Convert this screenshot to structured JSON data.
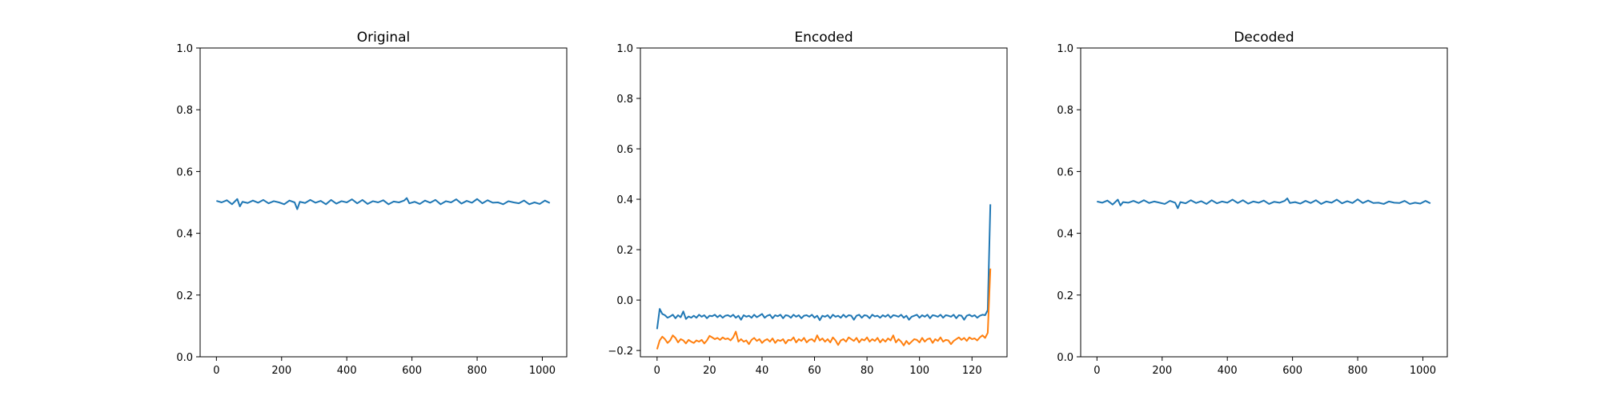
{
  "chart_data": [
    {
      "type": "line",
      "title": "Original",
      "xlim": [
        -50,
        1075
      ],
      "ylim": [
        0.0,
        1.0
      ],
      "xticks": [
        0,
        200,
        400,
        600,
        800,
        1000
      ],
      "xtick_labels": [
        "0",
        "200",
        "400",
        "600",
        "800",
        "1000"
      ],
      "yticks": [
        0.0,
        0.2,
        0.4,
        0.6,
        0.8,
        1.0
      ],
      "ytick_labels": [
        "0.0",
        "0.2",
        "0.4",
        "0.6",
        "0.8",
        "1.0"
      ],
      "series": [
        {
          "color": "#1f77b4",
          "x": [
            0,
            16,
            32,
            48,
            64,
            72,
            80,
            96,
            112,
            128,
            144,
            160,
            176,
            192,
            208,
            224,
            240,
            248,
            256,
            272,
            288,
            304,
            320,
            336,
            352,
            368,
            384,
            400,
            416,
            432,
            448,
            464,
            480,
            496,
            512,
            528,
            544,
            560,
            576,
            584,
            592,
            608,
            624,
            640,
            656,
            672,
            688,
            704,
            720,
            736,
            752,
            768,
            784,
            800,
            816,
            832,
            848,
            864,
            880,
            896,
            912,
            928,
            944,
            960,
            976,
            992,
            1008,
            1023
          ],
          "y": [
            0.505,
            0.5,
            0.507,
            0.494,
            0.511,
            0.487,
            0.502,
            0.498,
            0.506,
            0.499,
            0.508,
            0.497,
            0.504,
            0.5,
            0.494,
            0.506,
            0.5,
            0.478,
            0.502,
            0.498,
            0.508,
            0.499,
            0.505,
            0.494,
            0.508,
            0.496,
            0.504,
            0.5,
            0.51,
            0.497,
            0.508,
            0.495,
            0.504,
            0.5,
            0.507,
            0.494,
            0.503,
            0.5,
            0.506,
            0.514,
            0.497,
            0.502,
            0.495,
            0.506,
            0.499,
            0.508,
            0.494,
            0.504,
            0.5,
            0.51,
            0.496,
            0.505,
            0.499,
            0.511,
            0.497,
            0.507,
            0.499,
            0.5,
            0.494,
            0.504,
            0.5,
            0.497,
            0.506,
            0.494,
            0.5,
            0.495,
            0.506,
            0.498
          ]
        }
      ]
    },
    {
      "type": "line",
      "title": "Encoded",
      "xlim": [
        -6.35,
        133.35
      ],
      "ylim": [
        -0.225,
        1.0
      ],
      "xticks": [
        0,
        20,
        40,
        60,
        80,
        100,
        120
      ],
      "xtick_labels": [
        "0",
        "20",
        "40",
        "60",
        "80",
        "100",
        "120"
      ],
      "yticks": [
        -0.2,
        0.0,
        0.2,
        0.4,
        0.6,
        0.8,
        1.0
      ],
      "ytick_labels": [
        "−0.2",
        "0.0",
        "0.2",
        "0.4",
        "0.6",
        "0.8",
        "1.0"
      ],
      "series": [
        {
          "color": "#1f77b4",
          "x": [
            0,
            1,
            2,
            3,
            4,
            5,
            6,
            7,
            8,
            9,
            10,
            11,
            12,
            13,
            14,
            15,
            16,
            17,
            18,
            19,
            20,
            21,
            22,
            23,
            24,
            25,
            26,
            27,
            28,
            29,
            30,
            31,
            32,
            33,
            34,
            35,
            36,
            37,
            38,
            39,
            40,
            41,
            42,
            43,
            44,
            45,
            46,
            47,
            48,
            49,
            50,
            51,
            52,
            53,
            54,
            55,
            56,
            57,
            58,
            59,
            60,
            61,
            62,
            63,
            64,
            65,
            66,
            67,
            68,
            69,
            70,
            71,
            72,
            73,
            74,
            75,
            76,
            77,
            78,
            79,
            80,
            81,
            82,
            83,
            84,
            85,
            86,
            87,
            88,
            89,
            90,
            91,
            92,
            93,
            94,
            95,
            96,
            97,
            98,
            99,
            100,
            101,
            102,
            103,
            104,
            105,
            106,
            107,
            108,
            109,
            110,
            111,
            112,
            113,
            114,
            115,
            116,
            117,
            118,
            119,
            120,
            121,
            122,
            123,
            124,
            125,
            126,
            127
          ],
          "y": [
            -0.115,
            -0.035,
            -0.055,
            -0.06,
            -0.07,
            -0.065,
            -0.058,
            -0.072,
            -0.06,
            -0.068,
            -0.045,
            -0.075,
            -0.065,
            -0.07,
            -0.062,
            -0.07,
            -0.058,
            -0.066,
            -0.06,
            -0.072,
            -0.062,
            -0.064,
            -0.058,
            -0.068,
            -0.06,
            -0.07,
            -0.062,
            -0.06,
            -0.066,
            -0.058,
            -0.07,
            -0.062,
            -0.078,
            -0.06,
            -0.066,
            -0.062,
            -0.07,
            -0.058,
            -0.068,
            -0.062,
            -0.055,
            -0.07,
            -0.062,
            -0.058,
            -0.072,
            -0.06,
            -0.064,
            -0.058,
            -0.072,
            -0.06,
            -0.062,
            -0.07,
            -0.058,
            -0.066,
            -0.06,
            -0.072,
            -0.062,
            -0.06,
            -0.066,
            -0.058,
            -0.07,
            -0.062,
            -0.08,
            -0.062,
            -0.066,
            -0.06,
            -0.072,
            -0.058,
            -0.066,
            -0.062,
            -0.07,
            -0.058,
            -0.068,
            -0.06,
            -0.062,
            -0.078,
            -0.062,
            -0.058,
            -0.07,
            -0.06,
            -0.062,
            -0.072,
            -0.058,
            -0.065,
            -0.062,
            -0.07,
            -0.06,
            -0.066,
            -0.058,
            -0.07,
            -0.06,
            -0.062,
            -0.066,
            -0.058,
            -0.07,
            -0.062,
            -0.078,
            -0.066,
            -0.062,
            -0.058,
            -0.07,
            -0.06,
            -0.066,
            -0.058,
            -0.072,
            -0.06,
            -0.062,
            -0.066,
            -0.058,
            -0.07,
            -0.06,
            -0.062,
            -0.066,
            -0.058,
            -0.072,
            -0.06,
            -0.062,
            -0.078,
            -0.062,
            -0.058,
            -0.065,
            -0.06,
            -0.07,
            -0.062,
            -0.058,
            -0.06,
            -0.04,
            0.38
          ]
        },
        {
          "color": "#ff7f0e",
          "x": [
            0,
            1,
            2,
            3,
            4,
            5,
            6,
            7,
            8,
            9,
            10,
            11,
            12,
            13,
            14,
            15,
            16,
            17,
            18,
            19,
            20,
            21,
            22,
            23,
            24,
            25,
            26,
            27,
            28,
            29,
            30,
            31,
            32,
            33,
            34,
            35,
            36,
            37,
            38,
            39,
            40,
            41,
            42,
            43,
            44,
            45,
            46,
            47,
            48,
            49,
            50,
            51,
            52,
            53,
            54,
            55,
            56,
            57,
            58,
            59,
            60,
            61,
            62,
            63,
            64,
            65,
            66,
            67,
            68,
            69,
            70,
            71,
            72,
            73,
            74,
            75,
            76,
            77,
            78,
            79,
            80,
            81,
            82,
            83,
            84,
            85,
            86,
            87,
            88,
            89,
            90,
            91,
            92,
            93,
            94,
            95,
            96,
            97,
            98,
            99,
            100,
            101,
            102,
            103,
            104,
            105,
            106,
            107,
            108,
            109,
            110,
            111,
            112,
            113,
            114,
            115,
            116,
            117,
            118,
            119,
            120,
            121,
            122,
            123,
            124,
            125,
            126,
            127
          ],
          "y": [
            -0.195,
            -0.16,
            -0.145,
            -0.155,
            -0.17,
            -0.16,
            -0.14,
            -0.15,
            -0.168,
            -0.155,
            -0.16,
            -0.172,
            -0.158,
            -0.165,
            -0.17,
            -0.16,
            -0.165,
            -0.158,
            -0.172,
            -0.16,
            -0.142,
            -0.148,
            -0.155,
            -0.15,
            -0.158,
            -0.148,
            -0.155,
            -0.152,
            -0.16,
            -0.148,
            -0.125,
            -0.165,
            -0.155,
            -0.165,
            -0.16,
            -0.175,
            -0.158,
            -0.15,
            -0.162,
            -0.155,
            -0.17,
            -0.16,
            -0.155,
            -0.165,
            -0.152,
            -0.17,
            -0.158,
            -0.162,
            -0.155,
            -0.172,
            -0.158,
            -0.16,
            -0.148,
            -0.168,
            -0.155,
            -0.162,
            -0.15,
            -0.168,
            -0.158,
            -0.155,
            -0.165,
            -0.14,
            -0.16,
            -0.152,
            -0.165,
            -0.155,
            -0.168,
            -0.148,
            -0.16,
            -0.178,
            -0.16,
            -0.155,
            -0.165,
            -0.148,
            -0.155,
            -0.162,
            -0.15,
            -0.168,
            -0.155,
            -0.16,
            -0.148,
            -0.165,
            -0.155,
            -0.162,
            -0.15,
            -0.168,
            -0.155,
            -0.165,
            -0.152,
            -0.16,
            -0.14,
            -0.168,
            -0.155,
            -0.165,
            -0.18,
            -0.162,
            -0.175,
            -0.165,
            -0.155,
            -0.158,
            -0.168,
            -0.15,
            -0.165,
            -0.155,
            -0.152,
            -0.17,
            -0.155,
            -0.162,
            -0.148,
            -0.165,
            -0.158,
            -0.16,
            -0.175,
            -0.162,
            -0.155,
            -0.148,
            -0.158,
            -0.15,
            -0.162,
            -0.148,
            -0.155,
            -0.152,
            -0.16,
            -0.148,
            -0.14,
            -0.15,
            -0.13,
            0.125
          ]
        }
      ]
    },
    {
      "type": "line",
      "title": "Decoded",
      "xlim": [
        -50,
        1075
      ],
      "ylim": [
        0.0,
        1.0
      ],
      "xticks": [
        0,
        200,
        400,
        600,
        800,
        1000
      ],
      "xtick_labels": [
        "0",
        "200",
        "400",
        "600",
        "800",
        "1000"
      ],
      "yticks": [
        0.0,
        0.2,
        0.4,
        0.6,
        0.8,
        1.0
      ],
      "ytick_labels": [
        "0.0",
        "0.2",
        "0.4",
        "0.6",
        "0.8",
        "1.0"
      ],
      "series": [
        {
          "color": "#1f77b4",
          "x": [
            0,
            16,
            32,
            48,
            64,
            72,
            80,
            96,
            112,
            128,
            144,
            160,
            176,
            192,
            208,
            224,
            240,
            248,
            256,
            272,
            288,
            304,
            320,
            336,
            352,
            368,
            384,
            400,
            416,
            432,
            448,
            464,
            480,
            496,
            512,
            528,
            544,
            560,
            576,
            584,
            592,
            608,
            624,
            640,
            656,
            672,
            688,
            704,
            720,
            736,
            752,
            768,
            784,
            800,
            816,
            832,
            848,
            864,
            880,
            896,
            912,
            928,
            944,
            960,
            976,
            992,
            1008,
            1023
          ],
          "y": [
            0.503,
            0.499,
            0.506,
            0.493,
            0.509,
            0.49,
            0.501,
            0.499,
            0.505,
            0.498,
            0.507,
            0.498,
            0.503,
            0.499,
            0.495,
            0.505,
            0.499,
            0.481,
            0.501,
            0.497,
            0.507,
            0.498,
            0.504,
            0.495,
            0.507,
            0.497,
            0.503,
            0.499,
            0.509,
            0.498,
            0.507,
            0.496,
            0.503,
            0.499,
            0.506,
            0.495,
            0.502,
            0.499,
            0.505,
            0.513,
            0.498,
            0.501,
            0.496,
            0.505,
            0.498,
            0.507,
            0.495,
            0.503,
            0.499,
            0.509,
            0.497,
            0.504,
            0.498,
            0.51,
            0.498,
            0.506,
            0.498,
            0.499,
            0.495,
            0.503,
            0.499,
            0.498,
            0.505,
            0.495,
            0.499,
            0.496,
            0.505,
            0.497
          ]
        }
      ]
    }
  ]
}
